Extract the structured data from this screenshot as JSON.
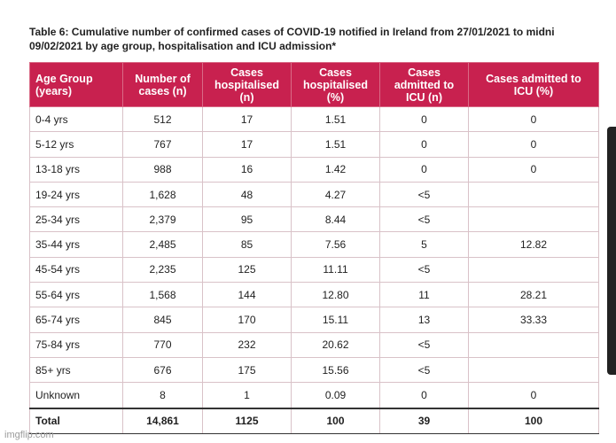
{
  "caption": {
    "line1": "Table 6: Cumulative number of confirmed cases of COVID-19 notified in Ireland from 27/01/2021 to midni",
    "line2": "09/02/2021 by age group, hospitalisation and ICU admission*"
  },
  "header_color": "#c8214f",
  "columns": [
    {
      "id": "age",
      "lines": [
        "Age Group",
        "(years)"
      ]
    },
    {
      "id": "cases",
      "lines": [
        "Number of",
        "cases (n)"
      ]
    },
    {
      "id": "hosp_n",
      "lines": [
        "Cases",
        "hospitalised",
        "(n)"
      ]
    },
    {
      "id": "hosp_pct",
      "lines": [
        "Cases",
        "hospitalised",
        "(%)"
      ]
    },
    {
      "id": "icu_n",
      "lines": [
        "Cases",
        "admitted to",
        "ICU (n)"
      ]
    },
    {
      "id": "icu_pct",
      "lines": [
        "Cases admitted to",
        "ICU (%)"
      ]
    }
  ],
  "rows": [
    [
      "0-4 yrs",
      "512",
      "17",
      "1.51",
      "0",
      "0"
    ],
    [
      "5-12 yrs",
      "767",
      "17",
      "1.51",
      "0",
      "0"
    ],
    [
      "13-18 yrs",
      "988",
      "16",
      "1.42",
      "0",
      "0"
    ],
    [
      "19-24 yrs",
      "1,628",
      "48",
      "4.27",
      "<5",
      ""
    ],
    [
      "25-34 yrs",
      "2,379",
      "95",
      "8.44",
      "<5",
      ""
    ],
    [
      "35-44 yrs",
      "2,485",
      "85",
      "7.56",
      "5",
      "12.82"
    ],
    [
      "45-54 yrs",
      "2,235",
      "125",
      "11.11",
      "<5",
      ""
    ],
    [
      "55-64 yrs",
      "1,568",
      "144",
      "12.80",
      "11",
      "28.21"
    ],
    [
      "65-74 yrs",
      "845",
      "170",
      "15.11",
      "13",
      "33.33"
    ],
    [
      "75-84 yrs",
      "770",
      "232",
      "20.62",
      "<5",
      ""
    ],
    [
      "85+ yrs",
      "676",
      "175",
      "15.56",
      "<5",
      ""
    ],
    [
      "Unknown",
      "8",
      "1",
      "0.09",
      "0",
      "0"
    ]
  ],
  "total": [
    "Total",
    "14,861",
    "1125",
    "100",
    "39",
    "100"
  ],
  "watermark": "imgflip.com"
}
